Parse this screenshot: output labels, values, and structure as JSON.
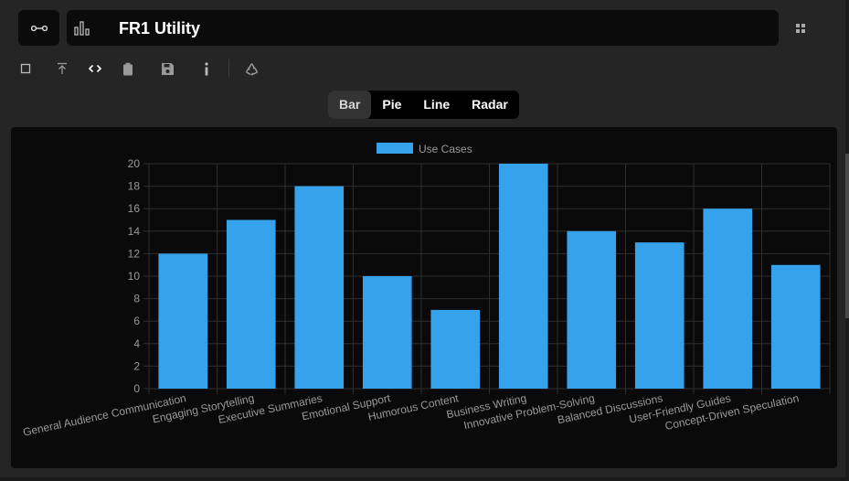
{
  "app": {
    "title": "FR1 Utility"
  },
  "icons": {
    "connect": "link-node-icon",
    "chart": "bar-chart-icon",
    "grid": "grid-icon",
    "toolbar": [
      "square-icon",
      "upload-icon",
      "code-icon",
      "clipboard-icon",
      "save-icon",
      "info-icon",
      "recycle-icon"
    ]
  },
  "chart_tabs": [
    {
      "label": "Bar",
      "active": true
    },
    {
      "label": "Pie",
      "active": false
    },
    {
      "label": "Line",
      "active": false
    },
    {
      "label": "Radar",
      "active": false
    }
  ],
  "colors": {
    "bar": "#36a2eb",
    "background": "#0a0a0a",
    "grid": "#2e2e2e",
    "tick": "#9a9a9a"
  },
  "chart_data": {
    "type": "bar",
    "categories": [
      "General Audience Communication",
      "Engaging Storytelling",
      "Executive Summaries",
      "Emotional Support",
      "Humorous Content",
      "Business Writing",
      "Innovative Problem-Solving",
      "Balanced Discussions",
      "User-Friendly Guides",
      "Concept-Driven Speculation"
    ],
    "series": [
      {
        "name": "Use Cases",
        "values": [
          12,
          15,
          18,
          10,
          7,
          20,
          14,
          13,
          16,
          11
        ]
      }
    ],
    "ylim": [
      0,
      20
    ],
    "yticks": [
      0,
      2,
      4,
      6,
      8,
      10,
      12,
      14,
      16,
      18,
      20
    ],
    "grid": true,
    "legend": "top-center"
  }
}
